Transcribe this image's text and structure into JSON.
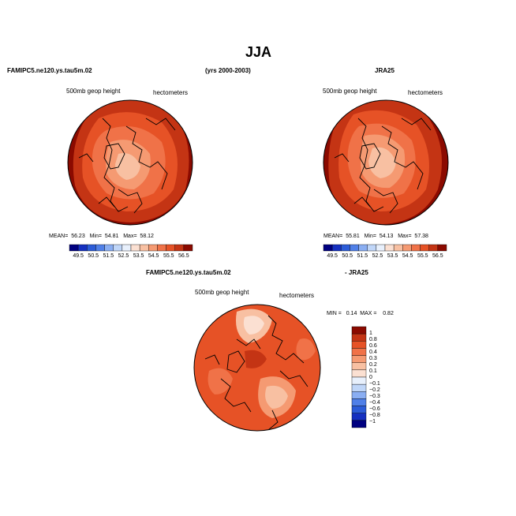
{
  "page": {
    "title": "JJA",
    "left_model": "FAMIPC5.ne120.ys.tau5m.02",
    "years": "(yrs 2000-2003)",
    "right_model": "JRA25",
    "diff_left": "FAMIPC5.ne120.ys.tau5m.02",
    "diff_right": "- JRA25"
  },
  "panels": {
    "model": {
      "var_label": "500mb geop height",
      "units_label": "hectometers",
      "mean_label": "MEAN=",
      "mean": "56.23",
      "min_label": "Min=",
      "min": "54.81",
      "max_label": "Max=",
      "max": "58.12"
    },
    "obs": {
      "var_label": "500mb geop height",
      "units_label": "hectometers",
      "mean_label": "MEAN=",
      "mean": "55.81",
      "min_label": "Min=",
      "min": "54.13",
      "max_label": "Max=",
      "max": "57.38"
    },
    "diff": {
      "var_label": "500mb geop height",
      "units_label": "hectometers",
      "min_label": "MIN =",
      "min": "0.14",
      "max_label": "MAX =",
      "max": "0.82"
    }
  },
  "chart_data": [
    {
      "type": "heatmap",
      "title": "FAMIPC5.ne120.ys.tau5m.02",
      "projection": "polar-stereographic north",
      "variable": "500mb geop height",
      "units": "hectometers",
      "mean": 56.23,
      "min": 54.81,
      "max": 58.12,
      "contour_levels": [
        49.5,
        50.5,
        51.5,
        52.5,
        53.5,
        54.5,
        55.5,
        56.5
      ],
      "colorbar_ticks": [
        "49.5",
        "50.5",
        "51.5",
        "52.5",
        "53.5",
        "54.5",
        "55.5",
        "56.5"
      ],
      "colorbar_colors": [
        "#000080",
        "#1530c0",
        "#2c5cd8",
        "#5080e8",
        "#8aaef2",
        "#c0d6f8",
        "#e8f0fc",
        "#fbe0d2",
        "#f8c0a2",
        "#f59a72",
        "#f07248",
        "#e65226",
        "#c43414",
        "#8b0a00"
      ]
    },
    {
      "type": "heatmap",
      "title": "JRA25",
      "projection": "polar-stereographic north",
      "variable": "500mb geop height",
      "units": "hectometers",
      "mean": 55.81,
      "min": 54.13,
      "max": 57.38,
      "contour_levels": [
        49.5,
        50.5,
        51.5,
        52.5,
        53.5,
        54.5,
        55.5,
        56.5
      ],
      "colorbar_ticks": [
        "49.5",
        "50.5",
        "51.5",
        "52.5",
        "53.5",
        "54.5",
        "55.5",
        "56.5"
      ],
      "colorbar_colors": [
        "#000080",
        "#1530c0",
        "#2c5cd8",
        "#5080e8",
        "#8aaef2",
        "#c0d6f8",
        "#e8f0fc",
        "#fbe0d2",
        "#f8c0a2",
        "#f59a72",
        "#f07248",
        "#e65226",
        "#c43414",
        "#8b0a00"
      ]
    },
    {
      "type": "heatmap",
      "title": "FAMIPC5.ne120.ys.tau5m.02 - JRA25",
      "projection": "polar-stereographic north",
      "variable": "500mb geop height",
      "units": "hectometers",
      "min": 0.14,
      "max": 0.82,
      "contour_levels": [
        -1,
        -0.8,
        -0.6,
        -0.4,
        -0.3,
        -0.2,
        -0.1,
        0,
        0.1,
        0.2,
        0.3,
        0.4,
        0.6,
        0.8,
        1
      ],
      "colorbar_ticks": [
        "1",
        "0.8",
        "0.6",
        "0.4",
        "0.3",
        "0.2",
        "0.1",
        "0",
        "−0.1",
        "−0.2",
        "−0.3",
        "−0.4",
        "−0.6",
        "−0.8",
        "−1"
      ],
      "colorbar_colors": [
        "#8b0a00",
        "#c43414",
        "#e65226",
        "#f07248",
        "#f59a72",
        "#f8c0a2",
        "#fbe0d2",
        "#e8f0fc",
        "#c0d6f8",
        "#8aaef2",
        "#5080e8",
        "#2c5cd8",
        "#1530c0",
        "#000080"
      ]
    }
  ]
}
